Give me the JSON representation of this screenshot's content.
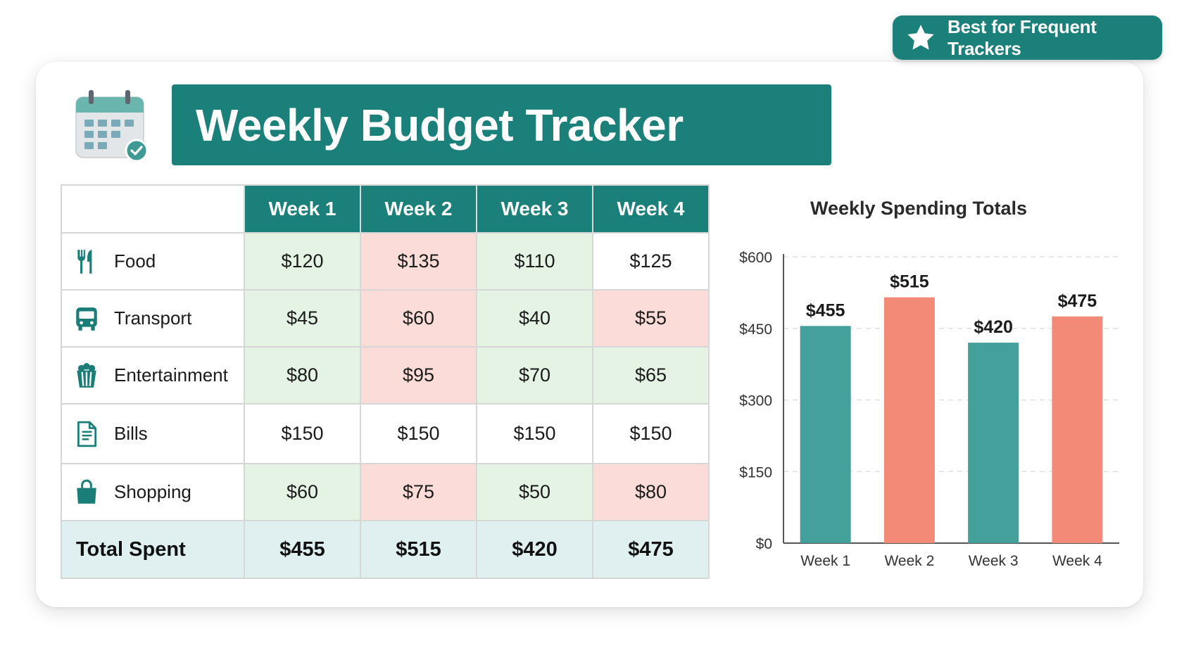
{
  "badge": {
    "label": "Best for Frequent Trackers",
    "icon": "star-icon"
  },
  "header": {
    "title": "Weekly Budget Tracker",
    "icon": "calendar-check-icon"
  },
  "table": {
    "columns": [
      "Week 1",
      "Week 2",
      "Week 3",
      "Week 4"
    ],
    "rows": [
      {
        "label": "Food",
        "icon": "fork-knife-icon",
        "values": [
          "$120",
          "$135",
          "$110",
          "$125"
        ],
        "status": [
          "under",
          "over",
          "under",
          "neutral"
        ]
      },
      {
        "label": "Transport",
        "icon": "bus-icon",
        "values": [
          "$45",
          "$60",
          "$40",
          "$55"
        ],
        "status": [
          "under",
          "over",
          "under",
          "over"
        ]
      },
      {
        "label": "Entertainment",
        "icon": "popcorn-icon",
        "values": [
          "$80",
          "$95",
          "$70",
          "$65"
        ],
        "status": [
          "under",
          "over",
          "under",
          "under"
        ]
      },
      {
        "label": "Bills",
        "icon": "document-icon",
        "values": [
          "$150",
          "$150",
          "$150",
          "$150"
        ],
        "status": [
          "neutral",
          "neutral",
          "neutral",
          "neutral"
        ]
      },
      {
        "label": "Shopping",
        "icon": "shopping-bag-icon",
        "values": [
          "$60",
          "$75",
          "$50",
          "$80"
        ],
        "status": [
          "under",
          "over",
          "under",
          "over"
        ]
      }
    ],
    "total": {
      "label": "Total Spent",
      "values": [
        "$455",
        "$515",
        "$420",
        "$475"
      ]
    }
  },
  "colors": {
    "accent": "#1a8079",
    "under_fill": "#e4f3e4",
    "over_fill": "#fbdcd8",
    "total_fill": "#e0f0f0",
    "bar_teal": "#44a09a",
    "bar_coral": "#f38a78"
  },
  "chart_data": {
    "type": "bar",
    "title": "Weekly Spending Totals",
    "categories": [
      "Week 1",
      "Week 2",
      "Week 3",
      "Week 4"
    ],
    "values": [
      455,
      515,
      420,
      475
    ],
    "value_labels": [
      "$455",
      "$515",
      "$420",
      "$475"
    ],
    "bar_colors": [
      "#44a09a",
      "#f38a78",
      "#44a09a",
      "#f38a78"
    ],
    "ylim": [
      0,
      600
    ],
    "yticks": [
      0,
      150,
      300,
      450,
      600
    ],
    "ytick_labels": [
      "$0",
      "$150",
      "$300",
      "$450",
      "$600"
    ],
    "xlabel": "",
    "ylabel": "",
    "grid": true,
    "legend": "none"
  }
}
